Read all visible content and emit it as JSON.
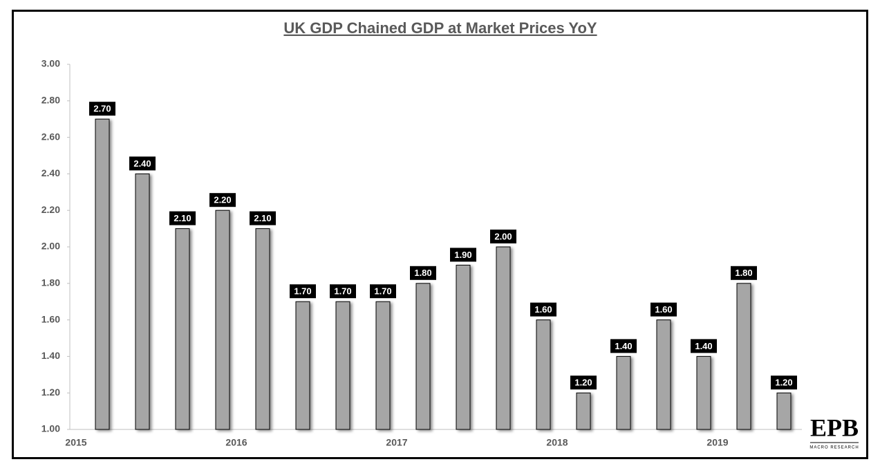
{
  "chart_data": {
    "type": "bar",
    "title": "UK GDP Chained GDP at Market Prices YoY",
    "categories": [
      null,
      null,
      null,
      null,
      null,
      null,
      null,
      null,
      null,
      null,
      null,
      null,
      null,
      null,
      null,
      null,
      null,
      null
    ],
    "x_labels": [
      "2015",
      "2016",
      "2017",
      "2018",
      "2019"
    ],
    "values": [
      2.7,
      2.4,
      2.1,
      2.2,
      2.1,
      1.7,
      1.7,
      1.7,
      1.8,
      1.9,
      2.0,
      1.6,
      1.2,
      1.4,
      1.6,
      1.4,
      1.8,
      1.2
    ],
    "value_labels": [
      "2.70",
      "2.40",
      "2.10",
      "2.20",
      "2.10",
      "1.70",
      "1.70",
      "1.70",
      "1.80",
      "1.90",
      "2.00",
      "1.60",
      "1.20",
      "1.40",
      "1.60",
      "1.40",
      "1.80",
      "1.20"
    ],
    "color": "#a6a6a6",
    "ylim": [
      1,
      3
    ],
    "yticks": [
      {
        "value": 1,
        "label": "1.00"
      },
      {
        "value": 1.2,
        "label": "1.20"
      },
      {
        "value": 1.4,
        "label": "1.40"
      },
      {
        "value": 1.6,
        "label": "1.60"
      },
      {
        "value": 1.8,
        "label": "1.80"
      },
      {
        "value": 2,
        "label": "2.00"
      },
      {
        "value": 2.2,
        "label": "2.20"
      },
      {
        "value": 2.4,
        "label": "2.40"
      },
      {
        "value": 2.6,
        "label": "2.60"
      },
      {
        "value": 2.8,
        "label": "2.80"
      },
      {
        "value": 3,
        "label": "3.00"
      }
    ],
    "grid": false,
    "logo": {
      "text": "EPB",
      "subtitle": "MACRO RESEARCH"
    }
  }
}
